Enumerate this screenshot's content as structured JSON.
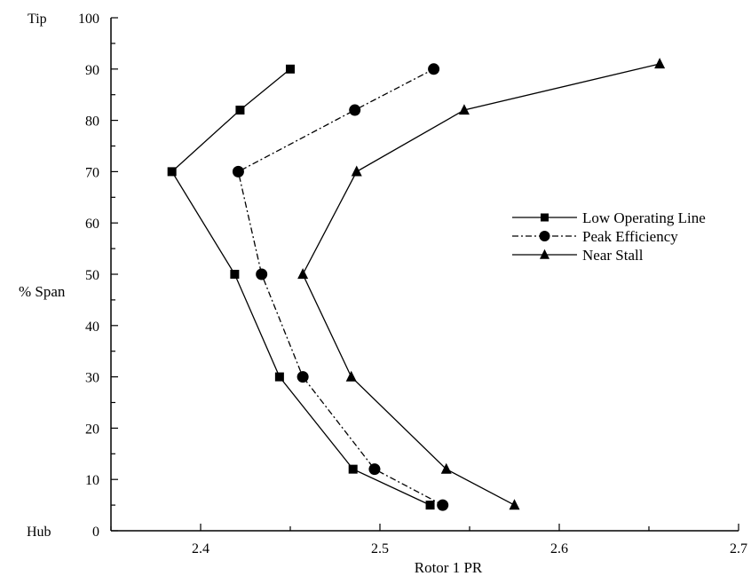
{
  "chart_data": {
    "type": "line",
    "xlabel": "Rotor 1 PR",
    "ylabel": "% Span",
    "xlim": [
      2.35,
      2.7
    ],
    "ylim": [
      0,
      100
    ],
    "x_ticks": [
      2.4,
      2.5,
      2.6,
      2.7
    ],
    "x_tick_labels": [
      "2.4",
      "2.5",
      "2.6",
      "2.7"
    ],
    "y_ticks": [
      0,
      10,
      20,
      30,
      40,
      50,
      60,
      70,
      80,
      90,
      100
    ],
    "y_tick_labels": [
      "0",
      "10",
      "20",
      "30",
      "40",
      "50",
      "60",
      "70",
      "80",
      "90",
      "100"
    ],
    "y_end_labels": {
      "top": "Tip",
      "bottom": "Hub"
    },
    "grid": false,
    "legend_position": "center-right",
    "series": [
      {
        "name": "Low Operating Line",
        "marker": "square",
        "dash": "solid",
        "points": [
          [
            2.528,
            5
          ],
          [
            2.485,
            12
          ],
          [
            2.444,
            30
          ],
          [
            2.419,
            50
          ],
          [
            2.384,
            70
          ],
          [
            2.422,
            82
          ],
          [
            2.45,
            90
          ]
        ]
      },
      {
        "name": "Peak Efficiency",
        "marker": "circle",
        "dash": "dashdot",
        "points": [
          [
            2.535,
            5
          ],
          [
            2.497,
            12
          ],
          [
            2.457,
            30
          ],
          [
            2.434,
            50
          ],
          [
            2.421,
            70
          ],
          [
            2.486,
            82
          ],
          [
            2.53,
            90
          ]
        ]
      },
      {
        "name": "Near Stall",
        "marker": "triangle",
        "dash": "solid",
        "points": [
          [
            2.575,
            5
          ],
          [
            2.537,
            12
          ],
          [
            2.484,
            30
          ],
          [
            2.457,
            50
          ],
          [
            2.487,
            70
          ],
          [
            2.547,
            82
          ],
          [
            2.656,
            91
          ]
        ]
      }
    ]
  }
}
